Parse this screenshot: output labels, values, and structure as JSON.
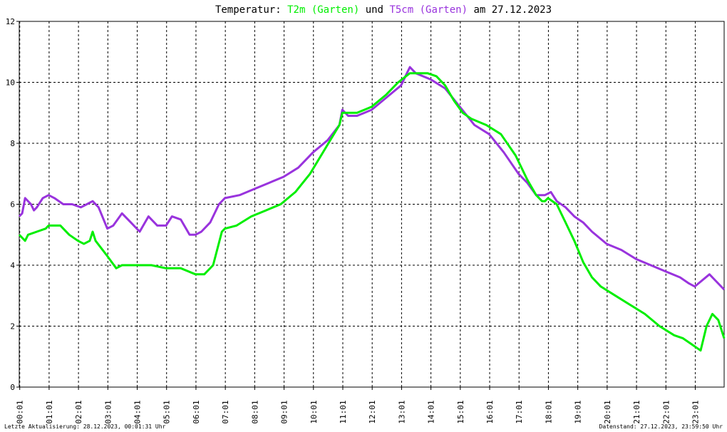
{
  "chart_data": {
    "type": "line",
    "title": {
      "prefix": "Temperatur:",
      "series1_label": "T2m (Garten)",
      "joiner": "und",
      "series2_label": "T5cm (Garten)",
      "suffix": "am 27.12.2023"
    },
    "x_ticks": [
      "00:01",
      "01:01",
      "02:01",
      "03:01",
      "04:01",
      "05:01",
      "06:01",
      "07:01",
      "08:01",
      "09:01",
      "10:01",
      "11:01",
      "12:01",
      "13:01",
      "14:01",
      "15:01",
      "16:01",
      "17:01",
      "18:01",
      "19:01",
      "20:01",
      "21:01",
      "22:01",
      "23:01"
    ],
    "xlim": [
      0,
      24
    ],
    "y_ticks": [
      0,
      2,
      4,
      6,
      8,
      10,
      12
    ],
    "ylim": [
      0,
      12
    ],
    "grid": true,
    "series": [
      {
        "name": "T2m (Garten)",
        "color": "#00ee00",
        "x": [
          0.0,
          0.2,
          0.3,
          0.6,
          0.9,
          1.0,
          1.4,
          1.7,
          2.0,
          2.2,
          2.4,
          2.5,
          2.6,
          3.0,
          3.3,
          3.5,
          3.7,
          4.0,
          4.5,
          5.0,
          5.5,
          6.0,
          6.3,
          6.6,
          6.9,
          7.0,
          7.4,
          7.9,
          8.4,
          8.9,
          9.4,
          9.9,
          10.4,
          10.9,
          11.0,
          11.5,
          12.0,
          12.5,
          12.9,
          13.3,
          13.5,
          13.9,
          14.2,
          14.5,
          14.8,
          15.1,
          15.4,
          15.9,
          16.4,
          16.9,
          17.3,
          17.6,
          17.8,
          17.9,
          18.0,
          18.3,
          18.6,
          18.9,
          19.2,
          19.5,
          19.8,
          20.3,
          20.8,
          21.3,
          21.8,
          22.3,
          22.6,
          22.9,
          23.2,
          23.4,
          23.6,
          23.8,
          24.0
        ],
        "y": [
          5.0,
          4.8,
          5.0,
          5.1,
          5.2,
          5.3,
          5.3,
          5.0,
          4.8,
          4.7,
          4.8,
          5.1,
          4.8,
          4.3,
          3.9,
          4.0,
          4.0,
          4.0,
          4.0,
          3.9,
          3.9,
          3.7,
          3.7,
          4.0,
          5.1,
          5.2,
          5.3,
          5.6,
          5.8,
          6.0,
          6.4,
          7.0,
          7.8,
          8.6,
          9.0,
          9.0,
          9.2,
          9.6,
          10.0,
          10.3,
          10.3,
          10.3,
          10.2,
          9.9,
          9.4,
          9.0,
          8.8,
          8.6,
          8.3,
          7.6,
          6.8,
          6.3,
          6.1,
          6.1,
          6.2,
          6.0,
          5.4,
          4.8,
          4.1,
          3.6,
          3.3,
          3.0,
          2.7,
          2.4,
          2.0,
          1.7,
          1.6,
          1.4,
          1.2,
          2.0,
          2.4,
          2.2,
          1.6
        ]
      },
      {
        "name": "T5cm (Garten)",
        "color": "#9933dd",
        "x": [
          0.0,
          0.1,
          0.2,
          0.4,
          0.5,
          0.6,
          0.8,
          1.0,
          1.2,
          1.5,
          1.8,
          2.1,
          2.3,
          2.5,
          2.7,
          3.0,
          3.2,
          3.5,
          3.8,
          4.1,
          4.4,
          4.7,
          5.0,
          5.2,
          5.5,
          5.8,
          6.0,
          6.2,
          6.5,
          6.8,
          7.0,
          7.5,
          8.0,
          8.5,
          9.0,
          9.5,
          10.0,
          10.5,
          10.9,
          11.0,
          11.2,
          11.5,
          12.0,
          12.5,
          13.0,
          13.2,
          13.3,
          13.5,
          14.0,
          14.5,
          15.0,
          15.5,
          16.0,
          16.5,
          17.0,
          17.3,
          17.6,
          17.9,
          18.1,
          18.3,
          18.6,
          18.9,
          19.2,
          19.5,
          20.0,
          20.5,
          21.0,
          21.5,
          22.0,
          22.5,
          22.8,
          23.0,
          23.5,
          23.7,
          24.0
        ],
        "y": [
          5.6,
          5.7,
          6.2,
          6.0,
          5.8,
          5.9,
          6.2,
          6.3,
          6.2,
          6.0,
          6.0,
          5.9,
          6.0,
          6.1,
          5.9,
          5.2,
          5.3,
          5.7,
          5.4,
          5.1,
          5.6,
          5.3,
          5.3,
          5.6,
          5.5,
          5.0,
          5.0,
          5.1,
          5.4,
          6.0,
          6.2,
          6.3,
          6.5,
          6.7,
          6.9,
          7.2,
          7.7,
          8.1,
          8.6,
          9.1,
          8.9,
          8.9,
          9.1,
          9.5,
          9.9,
          10.3,
          10.5,
          10.3,
          10.1,
          9.8,
          9.2,
          8.6,
          8.3,
          7.7,
          7.0,
          6.7,
          6.3,
          6.3,
          6.4,
          6.1,
          5.9,
          5.6,
          5.4,
          5.1,
          4.7,
          4.5,
          4.2,
          4.0,
          3.8,
          3.6,
          3.4,
          3.3,
          3.7,
          3.5,
          3.2
        ]
      }
    ]
  },
  "footer": {
    "left": "Letzte Aktualisierung: 28.12.2023, 00:01:31 Uhr",
    "right": "Datenstand: 27.12.2023, 23:59:50 Uhr"
  }
}
